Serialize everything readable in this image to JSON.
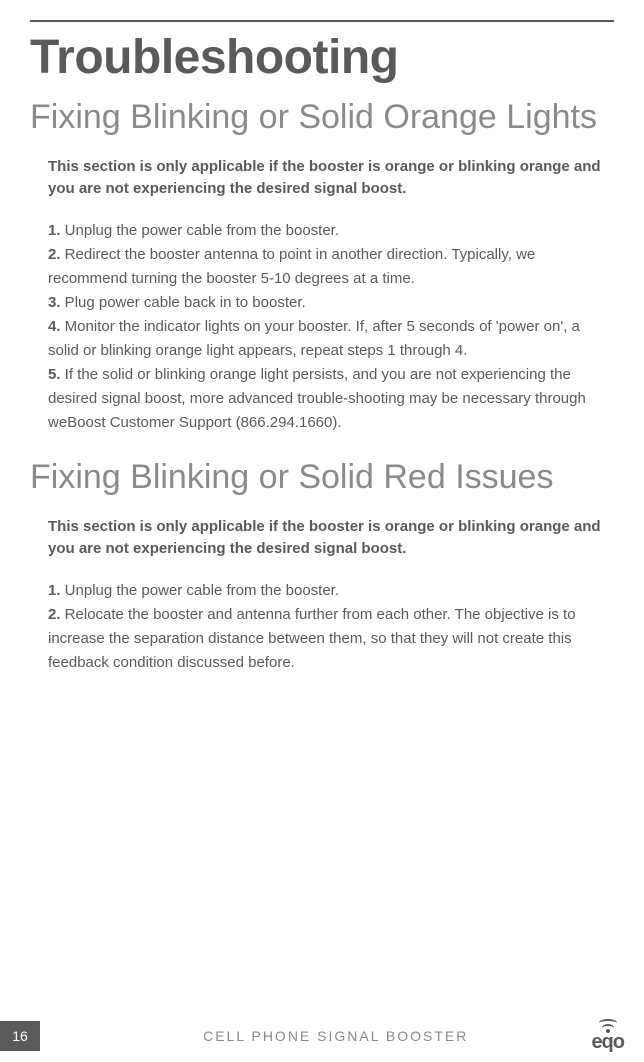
{
  "colors": {
    "text_primary": "#5a5a5a",
    "text_secondary": "#8a8a8a",
    "background": "#ffffff",
    "badge_bg": "#5a5a5a",
    "badge_text": "#ffffff"
  },
  "typography": {
    "main_title_size": 48,
    "section_title_size": 34,
    "body_size": 15,
    "footer_size": 14
  },
  "main_title": "Troubleshooting",
  "sections": [
    {
      "title": "Fixing Blinking or Solid Orange Lights",
      "intro": "This section is only applicable if the booster is orange or blinking orange and you are not experiencing the desired signal boost.",
      "steps": [
        {
          "num": "1.",
          "text": " Unplug the power cable from the booster."
        },
        {
          "num": "2.",
          "text": " Redirect the booster antenna to point in another direction. Typically, we recommend turning the booster 5-10 degrees at a time."
        },
        {
          "num": "3.",
          "text": " Plug power cable back in to booster."
        },
        {
          "num": "4.",
          "text": " Monitor the indicator lights on your booster. If, after 5 seconds of 'power on', a solid or blinking orange light appears, repeat steps 1 through 4."
        },
        {
          "num": "5.",
          "text": " If the solid or blinking orange light persists, and you are not experiencing the desired signal boost, more advanced trouble-shooting may be necessary through weBoost Customer Support (866.294.1660)."
        }
      ]
    },
    {
      "title": "Fixing Blinking or Solid Red Issues",
      "intro": "This section is only applicable if the booster is orange or blinking orange and you are not experiencing the desired signal boost.",
      "steps": [
        {
          "num": "1.",
          "text": " Unplug the power cable from the booster."
        },
        {
          "num": "2.",
          "text": " Relocate the booster and antenna further from each other. The objective is to increase the separation distance between them, so that they will not create this feedback condition discussed before."
        }
      ]
    }
  ],
  "footer": {
    "page_number": "16",
    "tagline": "CELL PHONE SIGNAL BOOSTER",
    "logo_text": "eqo"
  }
}
